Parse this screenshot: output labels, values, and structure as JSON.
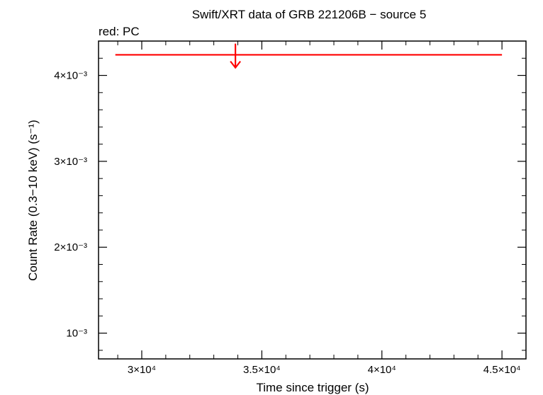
{
  "chart_data": {
    "type": "scatter",
    "title": "Swift/XRT data of GRB 221206B − source 5",
    "subtitle": "red: PC",
    "xlabel": "Time since trigger (s)",
    "ylabel": "Count Rate (0.3−10 keV) (s⁻¹)",
    "xlim": [
      28200,
      46000
    ],
    "ylim": [
      0.0007,
      0.0044
    ],
    "x_ticks": [
      {
        "value": 30000,
        "label": "3×10⁴"
      },
      {
        "value": 35000,
        "label": "3.5×10⁴"
      },
      {
        "value": 40000,
        "label": "4×10⁴"
      },
      {
        "value": 45000,
        "label": "4.5×10⁴"
      }
    ],
    "y_ticks": [
      {
        "value": 0.001,
        "label": "10⁻³"
      },
      {
        "value": 0.002,
        "label": "2×10⁻³"
      },
      {
        "value": 0.003,
        "label": "3×10⁻³"
      },
      {
        "value": 0.004,
        "label": "4×10⁻³"
      }
    ],
    "grid": false,
    "series": [
      {
        "name": "PC",
        "color": "#ff0000",
        "points": [
          {
            "x": 33900,
            "x_err_low": 5000,
            "x_err_high": 11100,
            "y": 0.00424,
            "upper_limit": true
          }
        ]
      }
    ]
  }
}
